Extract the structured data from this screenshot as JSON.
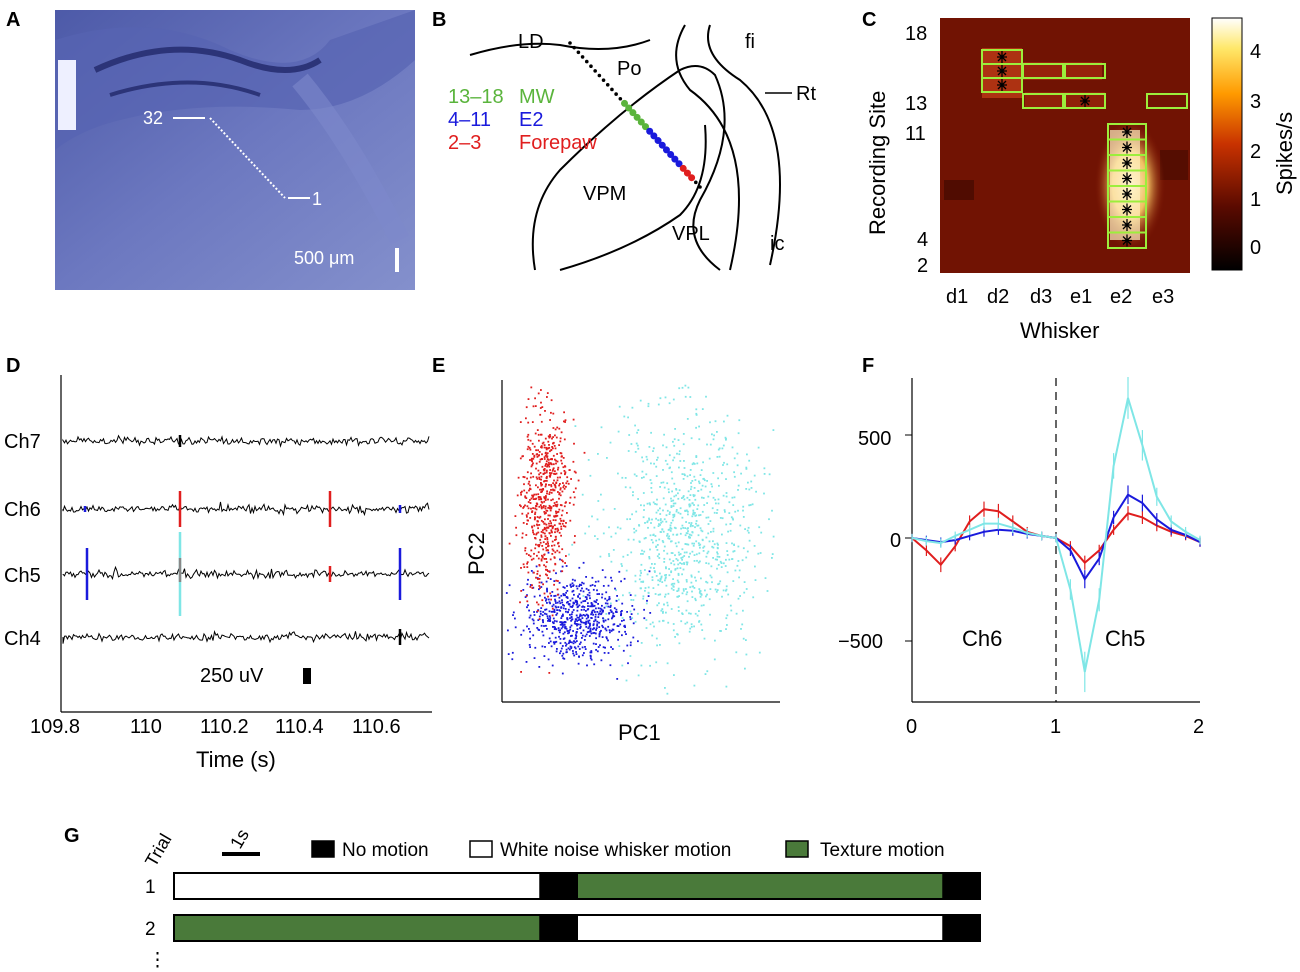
{
  "panels": {
    "A": {
      "label": "A",
      "site_top": "32",
      "site_bottom": "1",
      "scale": "500 μm"
    },
    "B": {
      "label": "B",
      "regions": [
        "LD",
        "Po",
        "fi",
        "Rt",
        "VPM",
        "VPL",
        "ic"
      ],
      "legend": [
        {
          "sites": "13–18",
          "target": "MW",
          "color": "#5ab43c"
        },
        {
          "sites": "4–11",
          "target": "E2",
          "color": "#1a1adc"
        },
        {
          "sites": "2–3",
          "target": "Forepaw",
          "color": "#e01e1e"
        }
      ]
    },
    "C": {
      "label": "C",
      "ylabel": "Recording Site",
      "xlabel": "Whisker",
      "yticks": [
        "18",
        "13",
        "11",
        "4",
        "2"
      ],
      "xticks": [
        "d1",
        "d2",
        "d3",
        "e1",
        "e2",
        "e3"
      ],
      "colorbar_label": "Spikes/s",
      "colorbar_ticks": [
        "4",
        "3",
        "2",
        "1",
        "0"
      ]
    },
    "D": {
      "label": "D",
      "channels": [
        "Ch7",
        "Ch6",
        "Ch5",
        "Ch4"
      ],
      "scale": "250 uV",
      "xticks": [
        "109.8",
        "110",
        "110.2",
        "110.4",
        "110.6"
      ],
      "xlabel": "Time (s)"
    },
    "E": {
      "label": "E",
      "xlabel": "PC1",
      "ylabel": "PC2"
    },
    "F": {
      "label": "F",
      "yticks": [
        "500",
        "0",
        "−500"
      ],
      "xticks": [
        "0",
        "1",
        "2"
      ],
      "annotations": [
        "Ch6",
        "Ch5"
      ]
    },
    "G": {
      "label": "G",
      "trial_header": "Trial",
      "scale": "1s",
      "legend": [
        {
          "label": "No motion",
          "color": "#000000"
        },
        {
          "label": "White noise whisker motion",
          "color": "#ffffff"
        },
        {
          "label": "Texture motion",
          "color": "#4a7a3a"
        }
      ],
      "trials": [
        "1",
        "2"
      ],
      "ellipsis": "⋮"
    }
  },
  "chart_data": [
    {
      "panel": "F",
      "type": "line",
      "title": "",
      "xlabel": "",
      "ylabel": "",
      "xlim": [
        0,
        2
      ],
      "ylim": [
        -800,
        800
      ],
      "x": [
        0,
        0.1,
        0.2,
        0.3,
        0.4,
        0.5,
        0.6,
        0.7,
        0.8,
        0.9,
        1.0,
        1.1,
        1.2,
        1.3,
        1.4,
        1.5,
        1.6,
        1.7,
        1.8,
        1.9,
        2.0
      ],
      "series": [
        {
          "name": "red",
          "color": "#e01e1e",
          "values": [
            0,
            -60,
            -130,
            -40,
            80,
            140,
            130,
            80,
            30,
            10,
            0,
            -40,
            -120,
            -60,
            40,
            120,
            100,
            60,
            30,
            10,
            -20
          ]
        },
        {
          "name": "blue",
          "color": "#1a1adc",
          "values": [
            0,
            -10,
            -20,
            -10,
            10,
            30,
            40,
            35,
            20,
            10,
            0,
            -60,
            -200,
            -100,
            100,
            210,
            170,
            90,
            40,
            15,
            -20
          ]
        },
        {
          "name": "cyan",
          "color": "#7fe6e6",
          "values": [
            0,
            -15,
            -25,
            10,
            40,
            70,
            70,
            50,
            25,
            10,
            0,
            -250,
            -650,
            -300,
            350,
            680,
            450,
            200,
            80,
            30,
            -10
          ]
        }
      ]
    },
    {
      "panel": "G",
      "type": "bar",
      "title": "",
      "categories": [
        "1",
        "2"
      ],
      "segments": [
        [
          {
            "kind": "White noise whisker motion",
            "start": 0,
            "end": 10
          },
          {
            "kind": "No motion",
            "start": 10,
            "end": 11
          },
          {
            "kind": "Texture motion",
            "start": 11,
            "end": 21
          },
          {
            "kind": "No motion",
            "start": 21,
            "end": 22
          }
        ],
        [
          {
            "kind": "Texture motion",
            "start": 0,
            "end": 10
          },
          {
            "kind": "No motion",
            "start": 10,
            "end": 11
          },
          {
            "kind": "White noise whisker motion",
            "start": 11,
            "end": 21
          },
          {
            "kind": "No motion",
            "start": 21,
            "end": 22
          }
        ]
      ]
    }
  ]
}
